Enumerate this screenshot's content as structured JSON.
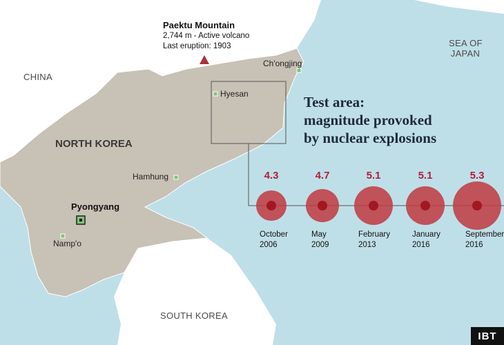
{
  "colors": {
    "sea": "#bfdfe8",
    "land": "#ffffff",
    "north_korea": "#c8c1b6",
    "marker_red": "#a8323e",
    "magnitude_red": "#b0203a",
    "city_marker": "#7cc576"
  },
  "labels": {
    "china": "CHINA",
    "sea_of_japan_1": "SEA OF",
    "sea_of_japan_2": "JAPAN",
    "north_korea": "NORTH KOREA",
    "south_korea": "SOUTH KOREA"
  },
  "paektu": {
    "name": "Paektu Mountain",
    "line1": "2,744 m - Active volcano",
    "line2": "Last eruption: 1903",
    "icon": "triangle-icon"
  },
  "cities": {
    "chongjing": "Ch'ongjing",
    "hyesan": "Hyesan",
    "hamhung": "Hamhung",
    "pyongyang": "Pyongyang",
    "nampo": "Namp'o"
  },
  "test_area": {
    "title_lines": [
      "Test area:",
      "magnitude provoked",
      "by nuclear explosions"
    ]
  },
  "explosions": [
    {
      "magnitude": "4.3",
      "month": "October",
      "year": "2006"
    },
    {
      "magnitude": "4.7",
      "month": "May",
      "year": "2009"
    },
    {
      "magnitude": "5.1",
      "month": "February",
      "year": "2013"
    },
    {
      "magnitude": "5.1",
      "month": "January",
      "year": "2016"
    },
    {
      "magnitude": "5.3",
      "month": "September",
      "year": "2016"
    }
  ],
  "brand": "IBT"
}
